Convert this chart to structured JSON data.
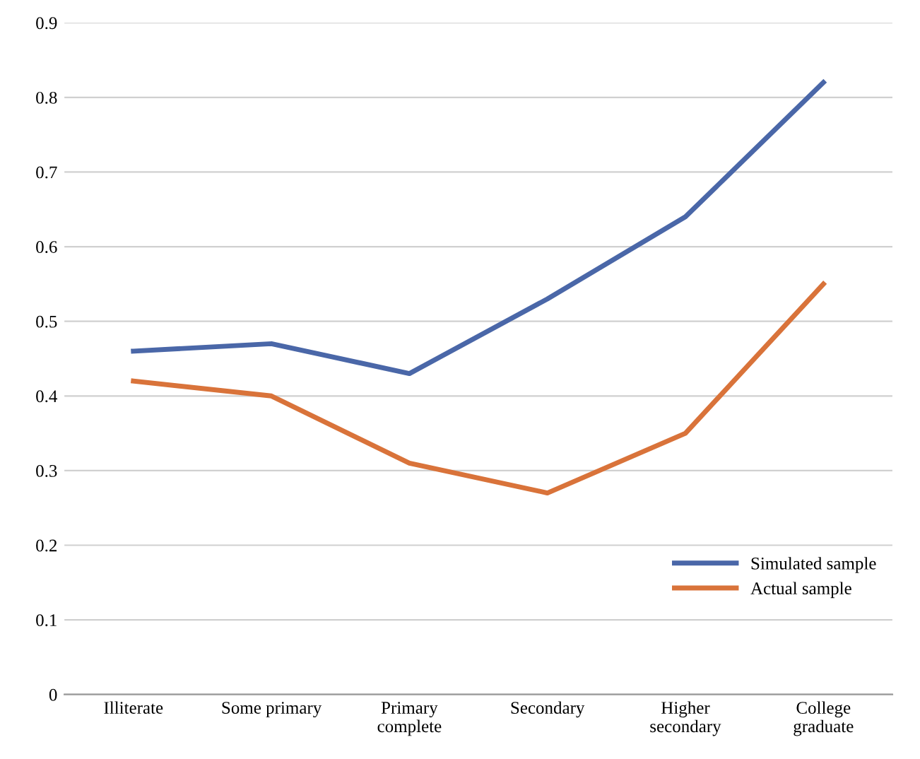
{
  "chart_data": {
    "type": "line",
    "categories": [
      "Illiterate",
      "Some primary",
      "Primary\ncomplete",
      "Secondary",
      "Higher\nsecondary",
      "College\ngraduate"
    ],
    "series": [
      {
        "name": "Simulated sample",
        "color": "#4a67a8",
        "values": [
          0.46,
          0.47,
          0.43,
          0.53,
          0.64,
          0.82
        ]
      },
      {
        "name": "Actual sample",
        "color": "#d9733a",
        "values": [
          0.42,
          0.4,
          0.31,
          0.27,
          0.35,
          0.55
        ]
      }
    ],
    "ylim": [
      0,
      0.9
    ],
    "yticks": [
      0,
      0.1,
      0.2,
      0.3,
      0.4,
      0.5,
      0.6,
      0.7,
      0.8,
      0.9
    ],
    "grid": "y",
    "legend": "lower right",
    "marker": "none",
    "line_style": "solid"
  }
}
